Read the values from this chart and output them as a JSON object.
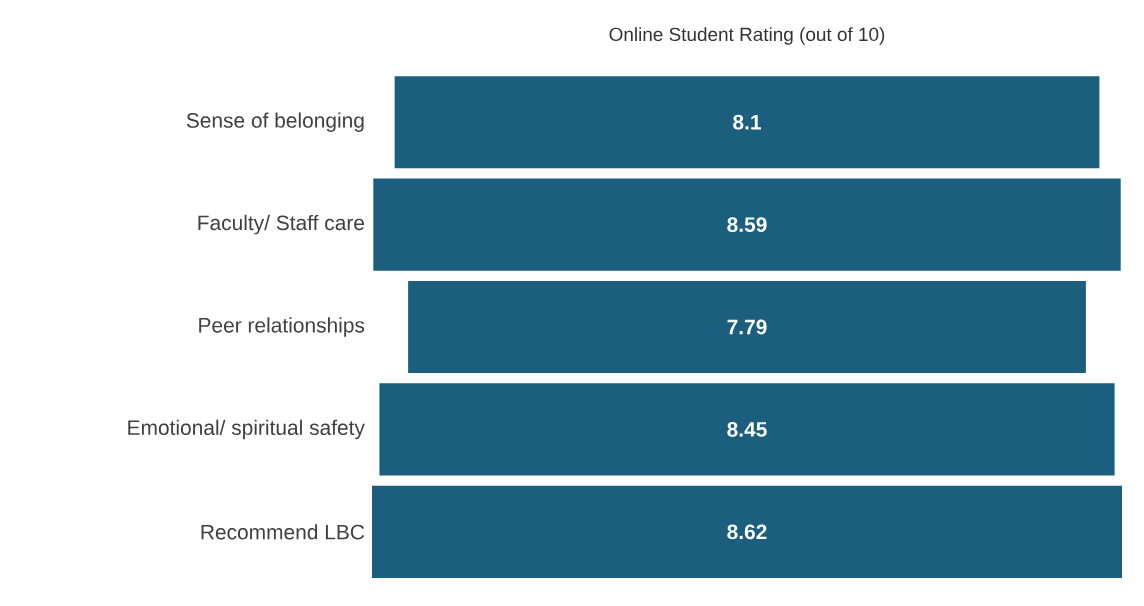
{
  "chart_data": {
    "type": "other",
    "title": "Online Student Rating (out of 10)",
    "categories": [
      "Sense of belonging",
      "Faculty/ Staff care",
      "Peer relationships",
      "Emotional/ spiritual safety",
      "Recommend LBC"
    ],
    "values": [
      8.1,
      8.59,
      7.79,
      8.45,
      8.62
    ],
    "color": "#1b5e7e",
    "data_labels": true
  }
}
